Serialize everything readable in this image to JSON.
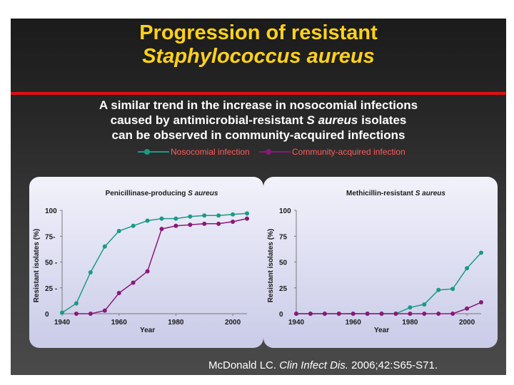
{
  "title": {
    "line1": "Progression of resistant",
    "line2": "Staphylococcus aureus"
  },
  "subtitle": {
    "line1": "A similar trend in the increase in nosocomial infections",
    "line2_pre": "caused by antimicrobial-resistant ",
    "line2_italic": "S aureus",
    "line2_post": " isolates",
    "line3": "can be observed in community-acquired infections"
  },
  "legend": {
    "nosocomial": "Nosocomial infection",
    "community": "Community-acquired infection"
  },
  "colors": {
    "nosocomial": "#1a9a86",
    "community": "#8a1878",
    "accent_red": "#e01010",
    "title": "#ffd21a"
  },
  "citation": {
    "authors": "McDonald LC.",
    "journal": "Clin Infect Dis.",
    "details": " 2006;42:S65-S71."
  },
  "chart_data": [
    {
      "type": "line",
      "title_prefix": "Penicillinase-producing ",
      "title_italic": "S aureus",
      "xlabel": "Year",
      "ylabel": "Resistant isolates (%)",
      "xlim": [
        1940,
        2005
      ],
      "ylim": [
        0,
        100
      ],
      "xticks": [
        1940,
        1960,
        1980,
        2000
      ],
      "yticks": [
        0,
        25,
        50,
        75,
        100
      ],
      "ytick_labels": [
        "0",
        "25 -",
        "50 -",
        "75-",
        "100"
      ],
      "series": [
        {
          "name": "Nosocomial infection",
          "x": [
            1940,
            1945,
            1950,
            1955,
            1960,
            1965,
            1970,
            1975,
            1980,
            1985,
            1990,
            1995,
            2000,
            2005
          ],
          "y": [
            1,
            10,
            40,
            65,
            80,
            85,
            90,
            92,
            92,
            94,
            95,
            95,
            96,
            97
          ]
        },
        {
          "name": "Community-acquired infection",
          "x": [
            1945,
            1950,
            1955,
            1960,
            1965,
            1970,
            1975,
            1980,
            1985,
            1990,
            1995,
            2000,
            2005
          ],
          "y": [
            0,
            0,
            3,
            20,
            30,
            41,
            82,
            85,
            86,
            87,
            87,
            89,
            92
          ]
        }
      ]
    },
    {
      "type": "line",
      "title_prefix": "Methicillin-resistant ",
      "title_italic": "S aureus",
      "xlabel": "Year",
      "ylabel": "Resistant isolates (%)",
      "xlim": [
        1940,
        2005
      ],
      "ylim": [
        0,
        100
      ],
      "xticks": [
        1940,
        1960,
        1980,
        2000
      ],
      "yticks": [
        0,
        25,
        50,
        75,
        100
      ],
      "ytick_labels": [
        "0",
        "25",
        "50",
        "75",
        "100"
      ],
      "series": [
        {
          "name": "Nosocomial infection",
          "x": [
            1940,
            1945,
            1950,
            1955,
            1960,
            1965,
            1970,
            1975,
            1980,
            1985,
            1990,
            1995,
            2000,
            2005
          ],
          "y": [
            0,
            0,
            0,
            0,
            0,
            0,
            0,
            0,
            6,
            9,
            23,
            24,
            44,
            59
          ]
        },
        {
          "name": "Community-acquired infection",
          "x": [
            1940,
            1945,
            1950,
            1955,
            1960,
            1965,
            1970,
            1975,
            1980,
            1985,
            1990,
            1995,
            2000,
            2005
          ],
          "y": [
            0,
            0,
            0,
            0,
            0,
            0,
            0,
            0,
            0,
            0,
            0,
            0,
            5,
            11
          ]
        }
      ]
    }
  ]
}
